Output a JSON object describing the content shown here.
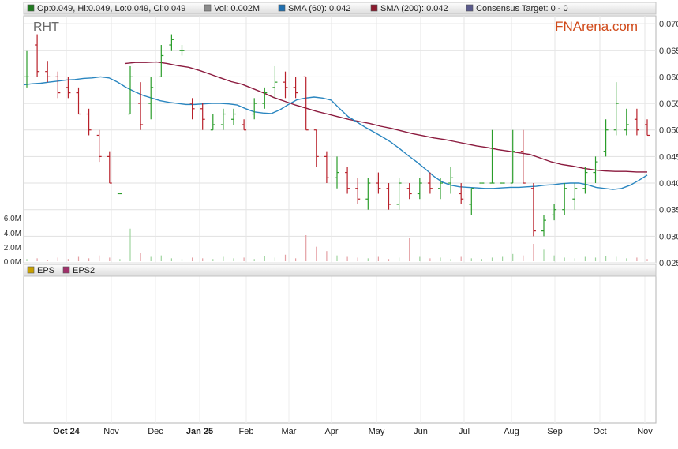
{
  "legend": [
    {
      "label": "Op:0.049, Hi:0.049, Lo:0.049, Cl:0.049",
      "color": "#1f7a1f"
    },
    {
      "label": "Vol: 0.002M",
      "color": "#8c8c8c"
    },
    {
      "label": "SMA (60): 0.042",
      "color": "#1f6fb0"
    },
    {
      "label": "SMA (200): 0.042",
      "color": "#8b1a2e"
    },
    {
      "label": "Consensus Target: 0 - 0",
      "color": "#5a5a8c"
    }
  ],
  "ticker": "RHT",
  "brand": "FNArena.com",
  "eps_legend": [
    {
      "label": "EPS",
      "color": "#c8a000"
    },
    {
      "label": "EPS2",
      "color": "#a0306a"
    }
  ],
  "chart_data": {
    "type": "ohlc",
    "price_axis": {
      "ticks": [
        "0.070",
        "0.065",
        "0.060",
        "0.055",
        "0.050",
        "0.045",
        "0.040",
        "0.035",
        "0.030",
        "0.025"
      ],
      "ylim": [
        0.025,
        0.0715
      ]
    },
    "volume_axis": {
      "ticks": [
        "6.0M",
        "4.0M",
        "2.0M",
        "0.0M"
      ]
    },
    "x_labels": [
      "Oct 24",
      "Nov",
      "Dec",
      "Jan 25",
      "Feb",
      "Mar",
      "Apr",
      "May",
      "Jun",
      "Jul",
      "Aug",
      "Sep",
      "Oct",
      "Nov"
    ],
    "grid": true,
    "colors": {
      "up": "#2a9d2a",
      "down": "#b8202a",
      "sma60": "#2a86c0",
      "sma200": "#8b1a3e"
    },
    "sma60": [
      0.0585,
      0.0587,
      0.0588,
      0.059,
      0.0592,
      0.0594,
      0.0595,
      0.0597,
      0.0598,
      0.06,
      0.0598,
      0.059,
      0.058,
      0.0572,
      0.0565,
      0.056,
      0.0555,
      0.0552,
      0.055,
      0.0548,
      0.0548,
      0.0549,
      0.055,
      0.055,
      0.0549,
      0.0547,
      0.054,
      0.0534,
      0.0532,
      0.0531,
      0.0538,
      0.0548,
      0.0557,
      0.056,
      0.0562,
      0.056,
      0.0556,
      0.054,
      0.0525,
      0.0515,
      0.0505,
      0.0496,
      0.0487,
      0.0477,
      0.0465,
      0.0452,
      0.044,
      0.0427,
      0.0413,
      0.0402,
      0.0396,
      0.0393,
      0.0392,
      0.0391,
      0.039,
      0.039,
      0.0391,
      0.0392,
      0.0392,
      0.0393,
      0.0394,
      0.0396,
      0.0397,
      0.0399,
      0.04,
      0.04,
      0.0397,
      0.0392,
      0.039,
      0.0388,
      0.039,
      0.0396,
      0.0405,
      0.0415
    ],
    "sma200": [
      0.0625,
      0.0627,
      0.0627,
      0.0628,
      0.0625,
      0.0621,
      0.0618,
      0.0612,
      0.0605,
      0.0598,
      0.0591,
      0.0586,
      0.0578,
      0.057,
      0.0561,
      0.0554,
      0.0547,
      0.0541,
      0.0535,
      0.053,
      0.0525,
      0.052,
      0.0516,
      0.0512,
      0.0507,
      0.0503,
      0.0498,
      0.0493,
      0.0489,
      0.0485,
      0.0482,
      0.0478,
      0.0474,
      0.047,
      0.0467,
      0.0463,
      0.046,
      0.0457,
      0.0454,
      0.0447,
      0.044,
      0.0435,
      0.0432,
      0.0428,
      0.0425,
      0.0423,
      0.0422,
      0.0422,
      0.0421,
      0.0421
    ],
    "bars": [
      [
        0.06,
        0.065,
        0.058,
        0.06
      ],
      [
        0.066,
        0.068,
        0.06,
        0.061
      ],
      [
        0.061,
        0.063,
        0.059,
        0.06
      ],
      [
        0.06,
        0.061,
        0.056,
        0.057
      ],
      [
        0.058,
        0.06,
        0.056,
        0.057
      ],
      [
        0.057,
        0.058,
        0.053,
        0.053
      ],
      [
        0.053,
        0.054,
        0.049,
        0.05
      ],
      [
        0.049,
        0.05,
        0.044,
        0.045
      ],
      [
        0.045,
        0.046,
        0.04,
        0.04
      ],
      [
        0.038,
        0.038,
        0.038,
        0.038
      ],
      [
        0.053,
        0.062,
        0.053,
        0.06
      ],
      [
        0.055,
        0.059,
        0.05,
        0.051
      ],
      [
        0.055,
        0.06,
        0.052,
        0.058
      ],
      [
        0.06,
        0.066,
        0.06,
        0.064
      ],
      [
        0.066,
        0.068,
        0.065,
        0.067
      ],
      [
        0.065,
        0.066,
        0.064,
        0.065
      ],
      [
        0.055,
        0.056,
        0.052,
        0.054
      ],
      [
        0.054,
        0.055,
        0.05,
        0.052
      ],
      [
        0.05,
        0.053,
        0.05,
        0.051
      ],
      [
        0.051,
        0.054,
        0.05,
        0.053
      ],
      [
        0.052,
        0.054,
        0.051,
        0.053
      ],
      [
        0.051,
        0.052,
        0.05,
        0.05
      ],
      [
        0.053,
        0.056,
        0.052,
        0.055
      ],
      [
        0.055,
        0.058,
        0.054,
        0.057
      ],
      [
        0.058,
        0.062,
        0.056,
        0.059
      ],
      [
        0.059,
        0.061,
        0.056,
        0.058
      ],
      [
        0.058,
        0.06,
        0.056,
        0.057
      ],
      [
        0.06,
        0.06,
        0.05,
        0.05
      ],
      [
        0.05,
        0.05,
        0.043,
        0.045
      ],
      [
        0.045,
        0.046,
        0.04,
        0.041
      ],
      [
        0.041,
        0.045,
        0.039,
        0.042
      ],
      [
        0.042,
        0.043,
        0.038,
        0.039
      ],
      [
        0.039,
        0.041,
        0.036,
        0.037
      ],
      [
        0.037,
        0.041,
        0.035,
        0.04
      ],
      [
        0.04,
        0.042,
        0.038,
        0.039
      ],
      [
        0.039,
        0.04,
        0.035,
        0.036
      ],
      [
        0.036,
        0.041,
        0.035,
        0.04
      ],
      [
        0.039,
        0.04,
        0.037,
        0.038
      ],
      [
        0.038,
        0.041,
        0.037,
        0.04
      ],
      [
        0.04,
        0.042,
        0.038,
        0.039
      ],
      [
        0.039,
        0.041,
        0.037,
        0.04
      ],
      [
        0.04,
        0.043,
        0.038,
        0.041
      ],
      [
        0.038,
        0.04,
        0.036,
        0.037
      ],
      [
        0.036,
        0.039,
        0.034,
        0.039
      ],
      [
        0.04,
        0.04,
        0.04,
        0.04
      ],
      [
        0.04,
        0.05,
        0.04,
        0.04
      ],
      [
        0.04,
        0.04,
        0.04,
        0.04
      ],
      [
        0.04,
        0.05,
        0.04,
        0.046
      ],
      [
        0.046,
        0.05,
        0.04,
        0.04
      ],
      [
        0.039,
        0.04,
        0.03,
        0.031
      ],
      [
        0.031,
        0.034,
        0.03,
        0.033
      ],
      [
        0.034,
        0.036,
        0.033,
        0.035
      ],
      [
        0.035,
        0.04,
        0.034,
        0.039
      ],
      [
        0.037,
        0.04,
        0.035,
        0.039
      ],
      [
        0.039,
        0.043,
        0.038,
        0.042
      ],
      [
        0.042,
        0.045,
        0.04,
        0.044
      ],
      [
        0.046,
        0.052,
        0.045,
        0.05
      ],
      [
        0.05,
        0.059,
        0.049,
        0.055
      ],
      [
        0.05,
        0.054,
        0.049,
        0.051
      ],
      [
        0.052,
        0.054,
        0.049,
        0.05
      ],
      [
        0.051,
        0.052,
        0.049,
        0.049
      ]
    ],
    "volumes": [
      0.3,
      0.4,
      0.2,
      0.5,
      0.3,
      0.6,
      0.4,
      0.8,
      0.5,
      0.3,
      4.5,
      1.2,
      0.6,
      0.8,
      0.4,
      0.3,
      0.5,
      0.4,
      0.3,
      0.6,
      0.4,
      0.5,
      0.3,
      0.7,
      0.5,
      0.9,
      0.4,
      3.6,
      2.0,
      1.4,
      0.8,
      0.6,
      0.5,
      0.4,
      0.6,
      0.3,
      0.5,
      3.2,
      0.6,
      0.4,
      0.5,
      0.3,
      0.6,
      0.4,
      0.3,
      0.5,
      0.6,
      1.0,
      0.8,
      2.4,
      1.6,
      0.8,
      0.5,
      0.4,
      0.6,
      0.5,
      0.7,
      0.6,
      0.4,
      0.5,
      0.3
    ]
  }
}
